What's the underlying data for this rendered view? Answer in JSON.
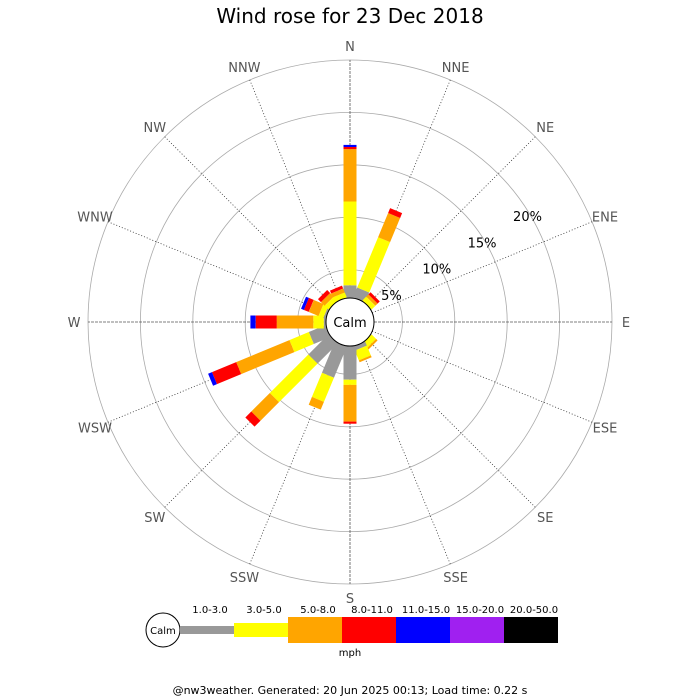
{
  "title": "Wind rose for 23 Dec 2018",
  "footer": "@nw3weather. Generated: 20 Jun 2025 00:13; Load time: 0.22 s",
  "chart_data": {
    "type": "wind-rose",
    "title": "Wind rose for 23 Dec 2018",
    "calm_label": "Calm",
    "directions": [
      "N",
      "NNE",
      "NE",
      "ENE",
      "E",
      "ESE",
      "SE",
      "SSE",
      "S",
      "SSW",
      "SW",
      "WSW",
      "W",
      "WNW",
      "NW",
      "NNW"
    ],
    "ring_labels": [
      "5%",
      "10%",
      "15%",
      "20%"
    ],
    "ring_values": [
      5,
      10,
      15,
      20
    ],
    "unit": "mph",
    "bins": [
      "1.0-3.0",
      "3.0-5.0",
      "5.0-8.0",
      "8.0-11.0",
      "11.0-15.0",
      "15.0-20.0",
      "20.0-50.0"
    ],
    "bin_colors": [
      "#999999",
      "#ffff00",
      "#ffa500",
      "#ff0000",
      "#0000ff",
      "#a020f0",
      "#000000"
    ],
    "calm_radius": 2.0,
    "series": {
      "N": [
        1.5,
        8.0,
        5.0,
        0.2,
        0.2,
        0,
        0
      ],
      "NNE": [
        1.3,
        5.2,
        2.5,
        0.5,
        0,
        0,
        0
      ],
      "NE": [
        0.3,
        0.5,
        0.3,
        0.3,
        0,
        0,
        0
      ],
      "ENE": [
        0,
        0,
        0,
        0,
        0,
        0,
        0
      ],
      "E": [
        0,
        0,
        0,
        0,
        0,
        0,
        0
      ],
      "ESE": [
        0,
        0,
        0,
        0,
        0,
        0,
        0
      ],
      "SE": [
        0.3,
        0.6,
        0.2,
        0,
        0,
        0,
        0
      ],
      "SSE": [
        0.7,
        1.0,
        0.2,
        0,
        0,
        0,
        0
      ],
      "S": [
        3.5,
        0.5,
        3.5,
        0.2,
        0,
        0,
        0
      ],
      "SSW": [
        3.5,
        2.5,
        0.8,
        0,
        0,
        0,
        0
      ],
      "SW": [
        3.0,
        5.2,
        2.5,
        0.8,
        0,
        0,
        0
      ],
      "WSW": [
        2.0,
        2.0,
        5.5,
        2.5,
        0.4,
        0,
        0
      ],
      "W": [
        0.5,
        1.0,
        3.5,
        2.0,
        0.5,
        0,
        0
      ],
      "WNW": [
        0.5,
        0.5,
        1.0,
        0.5,
        0.3,
        0,
        0
      ],
      "NW": [
        0.3,
        0.5,
        0.5,
        0.4,
        0,
        0,
        0
      ],
      "NNW": [
        0.3,
        0.5,
        0.4,
        0.3,
        0,
        0,
        0
      ]
    },
    "ring_max": 25
  }
}
